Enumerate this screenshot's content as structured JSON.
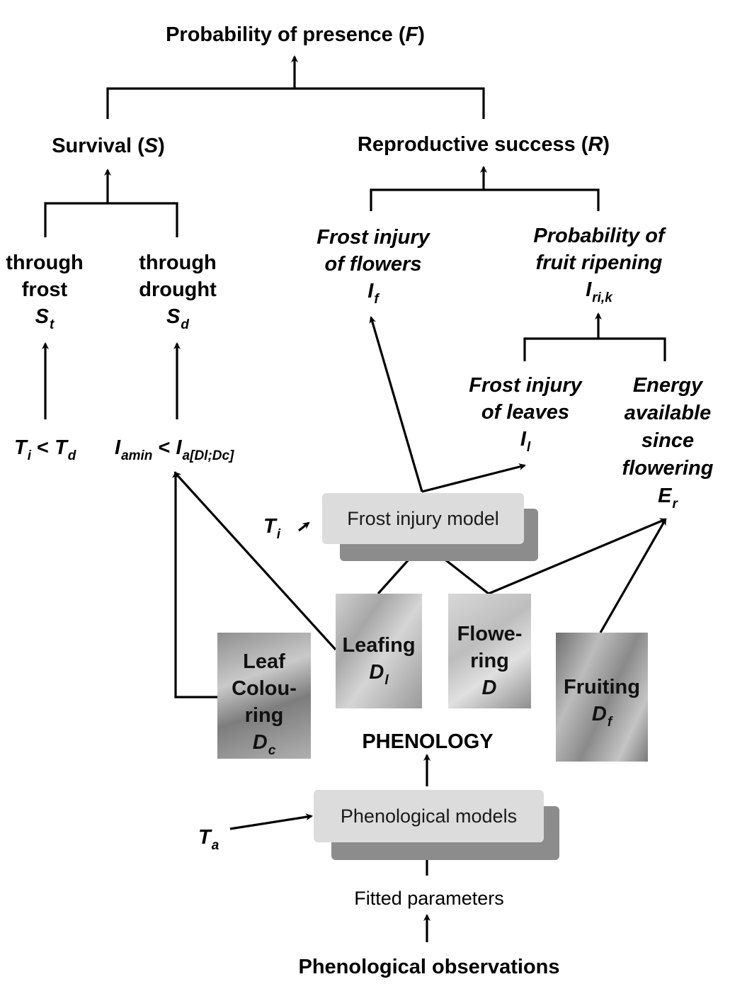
{
  "nodes": {
    "probability_of_presence": {
      "text": "Probability of presence (",
      "symbol": "F",
      "close": ")"
    },
    "survival": {
      "text": "Survival (",
      "symbol": "S",
      "close": ")"
    },
    "reproductive_success": {
      "text": "Reproductive success (",
      "symbol": "R",
      "close": ")"
    },
    "through_frost": {
      "line1": "through",
      "line2": "frost",
      "symbol": "S",
      "sub": "t"
    },
    "through_drought": {
      "line1": "through",
      "line2": "drought",
      "symbol": "S",
      "sub": "d"
    },
    "frost_injury_flowers": {
      "line1": "Frost injury",
      "line2": "of flowers",
      "symbol": "I",
      "sub": "f"
    },
    "fruit_ripening": {
      "line1": "Probability of",
      "line2": "fruit ripening",
      "symbol": "I",
      "sub": "ri,k"
    },
    "frost_injury_leaves": {
      "line1": "Frost injury",
      "line2": "of leaves",
      "symbol": "I",
      "sub": "l"
    },
    "energy_available": {
      "line1": "Energy",
      "line2": "available",
      "line3": "since",
      "line4": "flowering",
      "symbol": "E",
      "sub": "r"
    },
    "frost_condition": {
      "left": "T",
      "left_sub": "i",
      "op": " < ",
      "right": "T",
      "right_sub": "d"
    },
    "drought_condition": {
      "left": "I",
      "left_sub": "amin",
      "op": " < ",
      "right": "I",
      "right_sub": "a[Dl;Dc]"
    },
    "ti_input": {
      "symbol": "T",
      "sub": "i"
    },
    "ta_input": {
      "symbol": "T",
      "sub": "a"
    },
    "frost_injury_model": {
      "label": "Frost injury model"
    },
    "phenological_models": {
      "label": "Phenological models"
    },
    "phenology": {
      "label": "PHENOLOGY"
    },
    "fitted_parameters": {
      "label": "Fitted parameters"
    },
    "phenological_observations": {
      "label": "Phenological observations"
    },
    "leaf_colouring": {
      "line1": "Leaf",
      "line2": "Colou-",
      "line3": "ring",
      "symbol": "D",
      "sub": "c"
    },
    "leafing": {
      "line1": "Leafing",
      "symbol": "D",
      "sub": "l"
    },
    "flowering": {
      "line1": "Flowe-",
      "line2": "ring",
      "symbol": "D",
      "sub": ""
    },
    "fruiting": {
      "line1": "Fruiting",
      "symbol": "D",
      "sub": "f"
    }
  },
  "colors": {
    "line": "#000000",
    "box_fill": "#dcdcdc",
    "box_shadow": "#8c8c8c",
    "photo_gray": "#b5b5b5"
  }
}
